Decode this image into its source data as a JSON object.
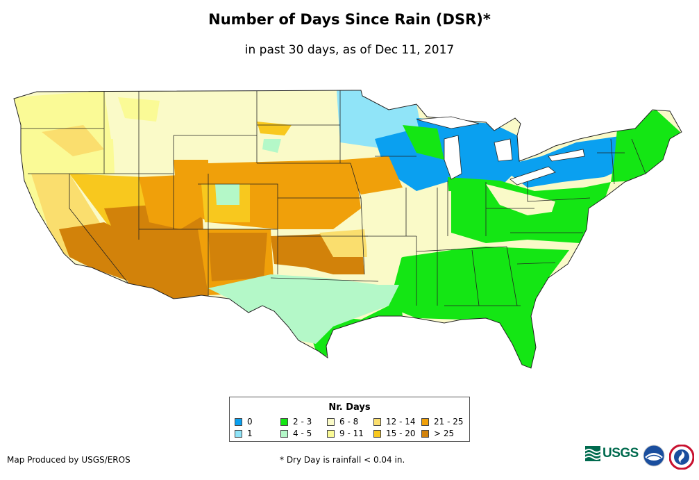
{
  "title": "Number of Days Since Rain (DSR)*",
  "subtitle": "in past 30 days, as of Dec 11, 2017",
  "legend": {
    "title": "Nr. Days",
    "items": [
      {
        "label": "0",
        "color": "#0aa0f0"
      },
      {
        "label": "1",
        "color": "#90e4f8"
      },
      {
        "label": "2 - 3",
        "color": "#14e614"
      },
      {
        "label": "4 - 5",
        "color": "#b4f8c8"
      },
      {
        "label": "6 - 8",
        "color": "#fafac8"
      },
      {
        "label": "9 - 11",
        "color": "#fafa96"
      },
      {
        "label": "12 - 14",
        "color": "#fade6e"
      },
      {
        "label": "15 - 20",
        "color": "#f8c81e"
      },
      {
        "label": "21 - 25",
        "color": "#f0a00a"
      },
      {
        "label": "> 25",
        "color": "#d2820a"
      }
    ]
  },
  "credit": "Map Produced by USGS/EROS",
  "footnote": "* Dry Day is rainfall < 0.04 in.",
  "logos": {
    "usgs": "USGS",
    "noaa": "noaa-logo",
    "nws": "nws-logo"
  }
}
